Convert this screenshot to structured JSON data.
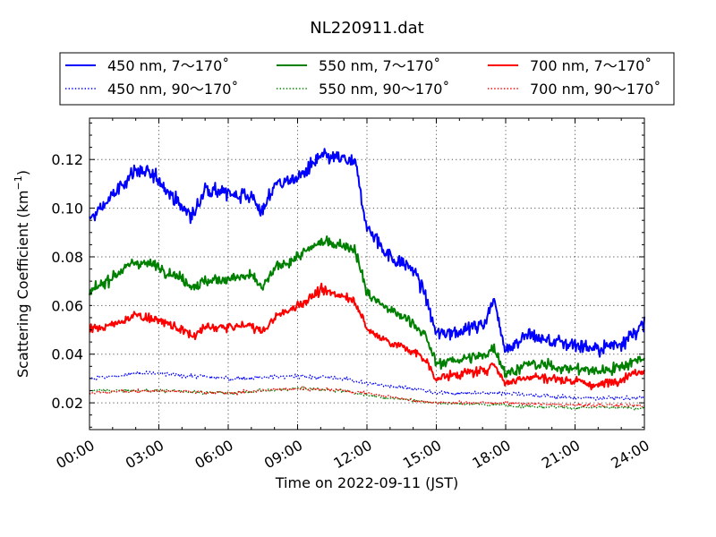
{
  "chart_data": {
    "type": "line",
    "title": "NL220911.dat",
    "xlabel": "Time on 2022-09-11 (JST)",
    "ylabel": "Scattering Coefficient (km",
    "ylabel_sup": "−1",
    "ylabel_close": ")",
    "xlim": [
      "00:00",
      "24:00"
    ],
    "ylim": [
      0.009,
      0.137
    ],
    "x_ticks": [
      "00:00",
      "03:00",
      "06:00",
      "09:00",
      "12:00",
      "15:00",
      "18:00",
      "21:00",
      "24:00"
    ],
    "y_ticks": [
      "0.02",
      "0.04",
      "0.06",
      "0.08",
      "0.10",
      "0.12"
    ],
    "grid": true,
    "legend_position": "top, above plot",
    "colors": {
      "450": "#0000ff",
      "550": "#008000",
      "700": "#ff0000"
    },
    "series": [
      {
        "name": "450 nm, 7～170˚",
        "color": "#0000ff",
        "style": "solid",
        "x": [
          "00:00",
          "01:00",
          "02:00",
          "03:00",
          "04:00",
          "04:30",
          "05:00",
          "06:00",
          "07:00",
          "07:30",
          "08:00",
          "09:00",
          "10:00",
          "11:00",
          "11:30",
          "12:00",
          "13:00",
          "14:00",
          "14:30",
          "15:00",
          "16:00",
          "17:00",
          "17:30",
          "18:00",
          "19:00",
          "20:00",
          "21:00",
          "22:00",
          "23:00",
          "24:00"
        ],
        "y": [
          0.095,
          0.105,
          0.116,
          0.112,
          0.1,
          0.097,
          0.108,
          0.106,
          0.105,
          0.098,
          0.11,
          0.112,
          0.121,
          0.12,
          0.118,
          0.092,
          0.08,
          0.075,
          0.065,
          0.048,
          0.05,
          0.052,
          0.062,
          0.042,
          0.048,
          0.045,
          0.044,
          0.042,
          0.045,
          0.052
        ],
        "noise": 0.0045
      },
      {
        "name": "550 nm, 7～170˚",
        "color": "#008000",
        "style": "solid",
        "x": [
          "00:00",
          "01:00",
          "02:00",
          "03:00",
          "04:00",
          "04:30",
          "05:00",
          "06:00",
          "07:00",
          "07:30",
          "08:00",
          "09:00",
          "10:00",
          "11:00",
          "11:30",
          "12:00",
          "13:00",
          "14:00",
          "14:30",
          "15:00",
          "16:00",
          "17:00",
          "17:30",
          "18:00",
          "19:00",
          "20:00",
          "21:00",
          "22:00",
          "23:00",
          "24:00"
        ],
        "y": [
          0.065,
          0.072,
          0.078,
          0.076,
          0.071,
          0.068,
          0.07,
          0.071,
          0.072,
          0.067,
          0.075,
          0.08,
          0.086,
          0.085,
          0.083,
          0.065,
          0.058,
          0.053,
          0.048,
          0.036,
          0.038,
          0.039,
          0.043,
          0.032,
          0.036,
          0.035,
          0.034,
          0.033,
          0.035,
          0.039
        ],
        "noise": 0.0033
      },
      {
        "name": "700 nm, 7～170˚",
        "color": "#ff0000",
        "style": "solid",
        "x": [
          "00:00",
          "01:00",
          "02:00",
          "03:00",
          "04:00",
          "04:30",
          "05:00",
          "06:00",
          "07:00",
          "07:30",
          "08:00",
          "09:00",
          "10:00",
          "11:00",
          "11:30",
          "12:00",
          "13:00",
          "14:00",
          "14:30",
          "15:00",
          "16:00",
          "17:00",
          "17:30",
          "18:00",
          "19:00",
          "20:00",
          "21:00",
          "22:00",
          "23:00",
          "24:00"
        ],
        "y": [
          0.05,
          0.052,
          0.056,
          0.054,
          0.05,
          0.047,
          0.051,
          0.051,
          0.052,
          0.049,
          0.055,
          0.06,
          0.066,
          0.064,
          0.062,
          0.05,
          0.045,
          0.041,
          0.038,
          0.03,
          0.032,
          0.033,
          0.036,
          0.028,
          0.031,
          0.03,
          0.029,
          0.027,
          0.03,
          0.034
        ],
        "noise": 0.0028
      },
      {
        "name": "450 nm, 90～170˚",
        "color": "#0000ff",
        "style": "dotted",
        "x": [
          "00:00",
          "02:00",
          "03:00",
          "06:00",
          "09:00",
          "11:00",
          "12:00",
          "14:00",
          "15:00",
          "18:00",
          "21:00",
          "24:00"
        ],
        "y": [
          0.03,
          0.032,
          0.032,
          0.03,
          0.031,
          0.03,
          0.028,
          0.026,
          0.024,
          0.024,
          0.022,
          0.022
        ],
        "noise": 0.0012
      },
      {
        "name": "550 nm, 90～170˚",
        "color": "#008000",
        "style": "dotted",
        "x": [
          "00:00",
          "02:00",
          "03:00",
          "06:00",
          "09:00",
          "11:00",
          "12:00",
          "14:00",
          "15:00",
          "18:00",
          "21:00",
          "24:00"
        ],
        "y": [
          0.025,
          0.025,
          0.025,
          0.024,
          0.026,
          0.025,
          0.023,
          0.021,
          0.02,
          0.019,
          0.018,
          0.018
        ],
        "noise": 0.001
      },
      {
        "name": "700 nm, 90～170˚",
        "color": "#ff0000",
        "style": "dotted",
        "x": [
          "00:00",
          "02:00",
          "03:00",
          "06:00",
          "09:00",
          "11:00",
          "12:00",
          "14:00",
          "15:00",
          "18:00",
          "21:00",
          "24:00"
        ],
        "y": [
          0.024,
          0.025,
          0.025,
          0.024,
          0.026,
          0.025,
          0.024,
          0.021,
          0.02,
          0.02,
          0.019,
          0.019
        ],
        "noise": 0.001
      }
    ]
  }
}
